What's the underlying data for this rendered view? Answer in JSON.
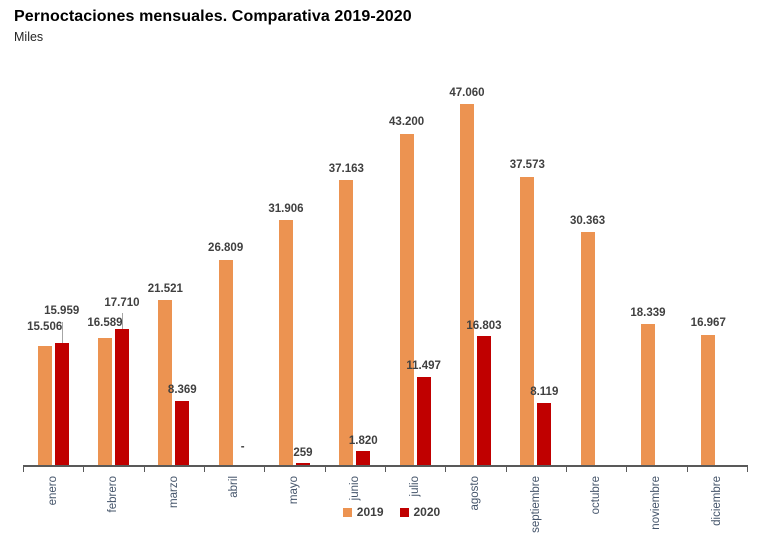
{
  "header": {
    "title": "Pernoctaciones mensuales. Comparativa 2019-2020",
    "subtitle": "Miles"
  },
  "colors": {
    "series_2019": "#EC9351",
    "series_2020": "#C00000",
    "axis": "#595959",
    "value_label": "#404040",
    "category_label": "#44546A",
    "leader_line": "#A6A6A6"
  },
  "chart_data": {
    "type": "bar",
    "title": "Pernoctaciones mensuales. Comparativa 2019-2020",
    "subtitle": "Miles",
    "xlabel": "",
    "ylabel": "Miles",
    "ylim": [
      0,
      48000
    ],
    "grid": false,
    "y_axis_visible": false,
    "legend_position": "bottom",
    "number_format": "thousands separated by dot (es-ES)",
    "categories": [
      "enero",
      "febrero",
      "marzo",
      "abril",
      "mayo",
      "junio",
      "julio",
      "agosto",
      "septiembre",
      "octubre",
      "noviembre",
      "diciembre"
    ],
    "series": [
      {
        "name": "2019",
        "color": "#EC9351",
        "values": [
          15506,
          16589,
          21521,
          26809,
          31906,
          37163,
          43200,
          47060,
          37573,
          30363,
          18339,
          16967
        ],
        "labels": [
          "15.506",
          "16.589",
          "21.521",
          "26.809",
          "31.906",
          "37.163",
          "43.200",
          "47.060",
          "37.573",
          "30.363",
          "18.339",
          "16.967"
        ]
      },
      {
        "name": "2020",
        "color": "#C00000",
        "values": [
          15959,
          17710,
          8369,
          0,
          259,
          1820,
          11497,
          16803,
          8119,
          null,
          null,
          null
        ],
        "labels": [
          "15.959",
          "17.710",
          "8.369",
          "-",
          "259",
          "1.820",
          "11.497",
          "16.803",
          "8.119",
          "",
          "",
          ""
        ]
      }
    ]
  }
}
